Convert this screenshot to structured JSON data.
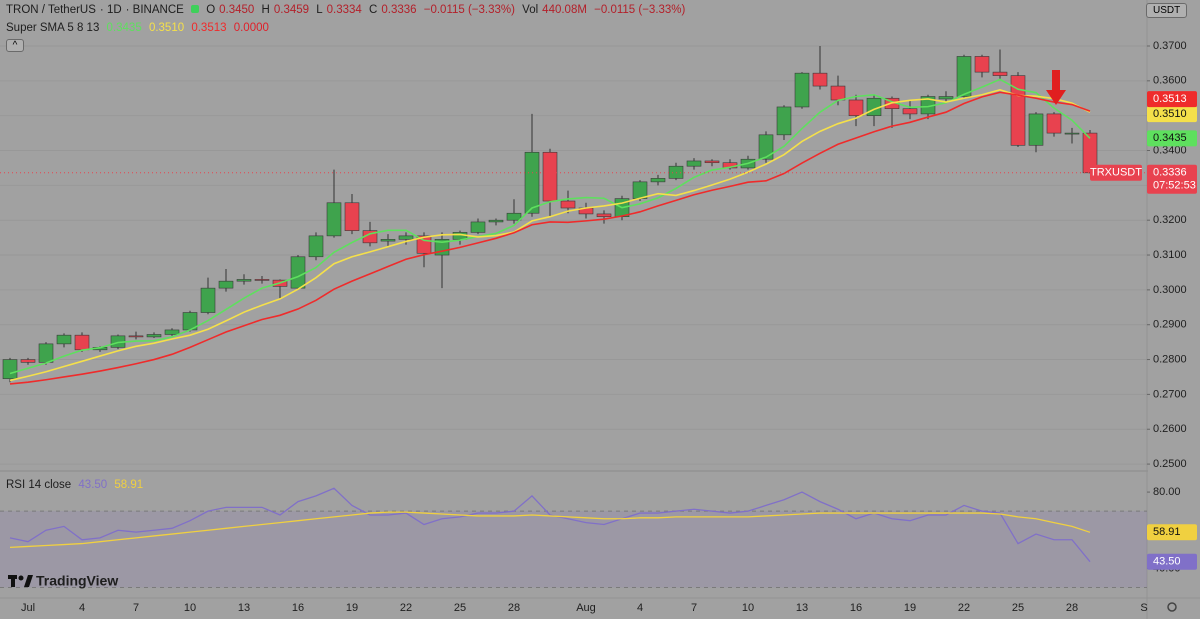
{
  "header": {
    "symbol": "TRON / TetherUS",
    "interval": "1D",
    "exchange": "BINANCE",
    "quote": [
      {
        "key": "O",
        "value": "0.3450"
      },
      {
        "key": "H",
        "value": "0.3459"
      },
      {
        "key": "L",
        "value": "0.3334"
      },
      {
        "key": "C",
        "value": "0.3336"
      }
    ],
    "change": "−0.0115 (−3.33%)",
    "volume_key": "Vol",
    "volume": "440.08M",
    "volume_change": "−0.0115 (−3.33%)",
    "currency": "USDT",
    "logo": "TradingView"
  },
  "chart_data": [
    {
      "type": "candlestick",
      "legend_title": "Super SMA 5 8 13",
      "legend_extra": "0.0000",
      "symbol_label": "TRXUSDT",
      "countdown": "07:52:53",
      "up_color": "#3fa34d",
      "down_color": "#e8424f",
      "categories": [
        null,
        "Jul",
        null,
        null,
        "4",
        null,
        null,
        "7",
        null,
        null,
        "10",
        null,
        null,
        "13",
        null,
        null,
        "16",
        null,
        null,
        "19",
        null,
        null,
        "22",
        null,
        null,
        "25",
        null,
        null,
        "28",
        null,
        null,
        null,
        "Aug",
        null,
        null,
        "4",
        null,
        null,
        "7",
        null,
        null,
        "10",
        null,
        null,
        "13",
        null,
        null,
        "16",
        null,
        null,
        "19",
        null,
        null,
        "22",
        null,
        null,
        "25",
        null,
        null,
        "28",
        null,
        null,
        null,
        "S"
      ],
      "open": [
        0.2745,
        0.28,
        0.2792,
        0.2845,
        0.287,
        0.2828,
        0.2835,
        0.2868,
        0.2865,
        0.2872,
        0.2885,
        0.2935,
        0.3005,
        0.3025,
        0.303,
        0.3028,
        0.3005,
        0.3095,
        0.3155,
        0.325,
        0.317,
        0.314,
        0.3145,
        0.3155,
        0.31,
        0.3145,
        0.3165,
        0.3195,
        0.32,
        0.322,
        0.3395,
        0.3255,
        0.3235,
        0.3218,
        0.321,
        0.3262,
        0.331,
        0.332,
        0.3355,
        0.337,
        0.3365,
        0.335,
        0.3375,
        0.3445,
        0.3525,
        0.3622,
        0.3585,
        0.3545,
        0.35,
        0.355,
        0.352,
        0.3505,
        0.3548,
        0.3555,
        0.367,
        0.3625,
        0.3615,
        0.3415,
        0.3505,
        0.345,
        0.345,
        null,
        null,
        null
      ],
      "high": [
        0.2805,
        0.2805,
        0.285,
        0.2875,
        0.2878,
        0.2838,
        0.2872,
        0.288,
        0.2878,
        0.289,
        0.294,
        0.3035,
        0.306,
        0.3045,
        0.304,
        0.303,
        0.31,
        0.3165,
        0.3345,
        0.3275,
        0.3195,
        0.316,
        0.3165,
        0.3165,
        0.3165,
        0.317,
        0.3205,
        0.3205,
        0.326,
        0.3505,
        0.3405,
        0.3285,
        0.325,
        0.3228,
        0.327,
        0.3315,
        0.333,
        0.3365,
        0.3378,
        0.3375,
        0.3375,
        0.3385,
        0.3455,
        0.353,
        0.3625,
        0.37,
        0.3615,
        0.356,
        0.356,
        0.3555,
        0.3545,
        0.356,
        0.357,
        0.3675,
        0.3675,
        0.369,
        0.3625,
        0.351,
        0.351,
        0.3465,
        0.3459,
        null,
        null,
        null
      ],
      "low": [
        0.2735,
        0.2785,
        0.2785,
        0.2835,
        0.2822,
        0.2822,
        0.283,
        0.2858,
        0.2862,
        0.2868,
        0.288,
        0.293,
        0.2995,
        0.3015,
        0.3018,
        0.2975,
        0.3,
        0.3085,
        0.315,
        0.316,
        0.3125,
        0.3125,
        0.313,
        0.3065,
        0.3005,
        0.313,
        0.316,
        0.3185,
        0.319,
        0.321,
        0.321,
        0.322,
        0.3205,
        0.319,
        0.32,
        0.3255,
        0.33,
        0.3315,
        0.3345,
        0.3355,
        0.3345,
        0.3345,
        0.3365,
        0.343,
        0.352,
        0.3575,
        0.353,
        0.347,
        0.347,
        0.3465,
        0.349,
        0.349,
        0.354,
        0.355,
        0.361,
        0.3605,
        0.341,
        0.3395,
        0.344,
        0.342,
        0.3334,
        null,
        null,
        null
      ],
      "close": [
        0.28,
        0.2792,
        0.2845,
        0.287,
        0.2828,
        0.2835,
        0.2868,
        0.2865,
        0.2872,
        0.2885,
        0.2935,
        0.3005,
        0.3025,
        0.303,
        0.3028,
        0.301,
        0.3095,
        0.3155,
        0.325,
        0.317,
        0.3135,
        0.3145,
        0.3155,
        0.3105,
        0.3145,
        0.3165,
        0.3195,
        0.32,
        0.322,
        0.3395,
        0.3255,
        0.3235,
        0.3218,
        0.321,
        0.3262,
        0.331,
        0.332,
        0.3355,
        0.337,
        0.3365,
        0.335,
        0.3375,
        0.3445,
        0.3525,
        0.3622,
        0.3585,
        0.3545,
        0.35,
        0.355,
        0.352,
        0.3505,
        0.3555,
        0.3555,
        0.367,
        0.3625,
        0.3615,
        0.3415,
        0.3505,
        0.345,
        0.345,
        0.3336,
        null,
        null,
        null
      ],
      "series": [
        {
          "color": "#5ee05e",
          "last_label": "0.3435",
          "values": [
            0.276,
            0.2775,
            0.279,
            0.281,
            0.2827,
            0.2834,
            0.2849,
            0.2853,
            0.2854,
            0.2865,
            0.2885,
            0.2912,
            0.2944,
            0.2976,
            0.3005,
            0.302,
            0.3038,
            0.3064,
            0.3108,
            0.3136,
            0.3161,
            0.3171,
            0.3171,
            0.3142,
            0.3137,
            0.3143,
            0.3153,
            0.3162,
            0.3185,
            0.3235,
            0.3253,
            0.3261,
            0.3265,
            0.3263,
            0.3236,
            0.3247,
            0.3264,
            0.3291,
            0.3323,
            0.3344,
            0.3352,
            0.3363,
            0.3381,
            0.3412,
            0.3463,
            0.351,
            0.3544,
            0.3555,
            0.356,
            0.354,
            0.3524,
            0.3526,
            0.3537,
            0.3561,
            0.3582,
            0.3604,
            0.3576,
            0.3566,
            0.3522,
            0.3487,
            0.3435,
            null,
            null,
            null
          ]
        },
        {
          "color": "#f5e04a",
          "last_label": "0.3510",
          "values": [
            0.274,
            0.2752,
            0.2765,
            0.278,
            0.2795,
            0.281,
            0.2825,
            0.2838,
            0.2847,
            0.2859,
            0.287,
            0.2887,
            0.2911,
            0.2936,
            0.2956,
            0.2974,
            0.3002,
            0.3035,
            0.3075,
            0.3095,
            0.3109,
            0.3124,
            0.3139,
            0.3151,
            0.3158,
            0.3159,
            0.3152,
            0.3156,
            0.3166,
            0.3198,
            0.321,
            0.3226,
            0.3235,
            0.3241,
            0.3249,
            0.3263,
            0.3276,
            0.3271,
            0.3285,
            0.3301,
            0.3318,
            0.3338,
            0.3361,
            0.3388,
            0.3426,
            0.3455,
            0.3477,
            0.3493,
            0.3518,
            0.3537,
            0.3544,
            0.3548,
            0.3539,
            0.355,
            0.356,
            0.3574,
            0.3558,
            0.3556,
            0.3549,
            0.3536,
            0.351,
            null,
            null,
            null
          ]
        },
        {
          "color": "#ef2b2b",
          "last_label": "0.3513",
          "values": [
            0.273,
            0.2735,
            0.2742,
            0.275,
            0.2758,
            0.2767,
            0.2777,
            0.2788,
            0.28,
            0.2815,
            0.2835,
            0.2857,
            0.2879,
            0.2897,
            0.2915,
            0.2927,
            0.2945,
            0.297,
            0.3002,
            0.3025,
            0.3046,
            0.3067,
            0.3088,
            0.3101,
            0.3111,
            0.3122,
            0.3135,
            0.3148,
            0.3164,
            0.3187,
            0.3195,
            0.3194,
            0.3198,
            0.3203,
            0.3212,
            0.3224,
            0.3241,
            0.3257,
            0.3273,
            0.3286,
            0.3297,
            0.3309,
            0.3313,
            0.3334,
            0.3364,
            0.3392,
            0.3418,
            0.3436,
            0.3454,
            0.347,
            0.3481,
            0.3496,
            0.351,
            0.3535,
            0.3554,
            0.3567,
            0.3559,
            0.355,
            0.3539,
            0.3532,
            0.3513,
            null,
            null,
            null
          ]
        }
      ],
      "ylim": [
        0.2483,
        0.3832
      ],
      "yticks": [
        {
          "value": 0.25,
          "label": "0.2500"
        },
        {
          "value": 0.26,
          "label": "0.2600"
        },
        {
          "value": 0.27,
          "label": "0.2700"
        },
        {
          "value": 0.28,
          "label": "0.2800"
        },
        {
          "value": 0.29,
          "label": "0.2900"
        },
        {
          "value": 0.3,
          "label": "0.3000"
        },
        {
          "value": 0.31,
          "label": "0.3100"
        },
        {
          "value": 0.32,
          "label": "0.3200"
        },
        {
          "value": 0.33,
          "label": "0.3300"
        },
        {
          "value": 0.34,
          "label": "0.3400"
        },
        {
          "value": 0.35,
          "label": "0.3500"
        },
        {
          "value": 0.36,
          "label": "0.3600"
        },
        {
          "value": 0.37,
          "label": "0.3700"
        }
      ],
      "grid": true
    },
    {
      "type": "line",
      "title": "RSI 14 close",
      "band": [
        30,
        70
      ],
      "band_color": "#7e57c2",
      "series": [
        {
          "color": "#8070c8",
          "last_label": "43.50",
          "values": [
            56,
            54,
            60,
            62,
            55,
            56,
            60,
            59,
            60,
            61,
            65,
            70,
            72,
            72,
            72,
            68,
            75,
            78,
            82,
            73,
            68,
            68,
            69,
            63,
            66,
            67,
            69,
            69,
            70,
            78,
            68,
            66,
            64,
            63,
            66,
            69,
            69,
            70,
            71,
            70,
            69,
            70,
            73,
            76,
            80,
            75,
            71,
            66,
            69,
            66,
            65,
            68,
            68,
            73,
            70,
            69,
            53,
            58,
            55,
            55,
            43.5,
            null,
            null,
            null
          ]
        },
        {
          "color": "#f0d040",
          "last_label": "58.91",
          "values": [
            51,
            51.5,
            52,
            52.5,
            53,
            54,
            55,
            56,
            57,
            58,
            59,
            60,
            61,
            62,
            63,
            64,
            65,
            66,
            67,
            68,
            69,
            69.5,
            69.5,
            69,
            68.5,
            68,
            67.5,
            67.5,
            67.5,
            68,
            67.5,
            67,
            66.5,
            66,
            66,
            66.5,
            66.5,
            67,
            67,
            67,
            67,
            67,
            67.5,
            68,
            68.5,
            69,
            69,
            69,
            69,
            69,
            69,
            69,
            69,
            69,
            69,
            68.5,
            67,
            66,
            64,
            62,
            58.91,
            null,
            null,
            null
          ]
        }
      ],
      "ylim": [
        25,
        90
      ],
      "yticks": [
        {
          "value": 80,
          "label": "80.00"
        },
        {
          "value": 40,
          "label": "40.00"
        }
      ]
    }
  ]
}
